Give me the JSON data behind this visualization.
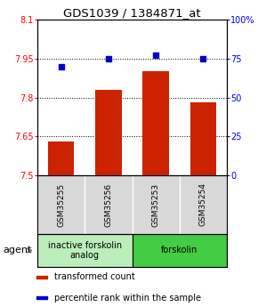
{
  "title": "GDS1039 / 1384871_at",
  "samples": [
    "GSM35255",
    "GSM35256",
    "GSM35253",
    "GSM35254"
  ],
  "bar_values": [
    7.63,
    7.83,
    7.9,
    7.78
  ],
  "dot_values": [
    70,
    75,
    77,
    75
  ],
  "ylim_left": [
    7.5,
    8.1
  ],
  "ylim_right": [
    0,
    100
  ],
  "yticks_left": [
    7.5,
    7.65,
    7.8,
    7.95,
    8.1
  ],
  "yticks_right": [
    0,
    25,
    50,
    75,
    100
  ],
  "ytick_labels_right": [
    "0",
    "25",
    "50",
    "75",
    "100%"
  ],
  "bar_color": "#cc2200",
  "dot_color": "#0000cc",
  "bar_bottom": 7.5,
  "gridlines": [
    7.65,
    7.8,
    7.95
  ],
  "agent_groups": [
    {
      "label": "inactive forskolin\nanalog",
      "color": "#bbeebb",
      "span": [
        0,
        2
      ]
    },
    {
      "label": "forskolin",
      "color": "#44cc44",
      "span": [
        2,
        4
      ]
    }
  ],
  "legend_items": [
    {
      "color": "#cc2200",
      "label": "transformed count"
    },
    {
      "color": "#0000cc",
      "label": "percentile rank within the sample"
    }
  ],
  "agent_label": "agent",
  "background_color": "#ffffff",
  "plot_bg": "#ffffff",
  "title_fontsize": 9.5,
  "tick_fontsize": 7,
  "sample_fontsize": 6.5,
  "legend_fontsize": 7,
  "agent_fontsize": 7
}
